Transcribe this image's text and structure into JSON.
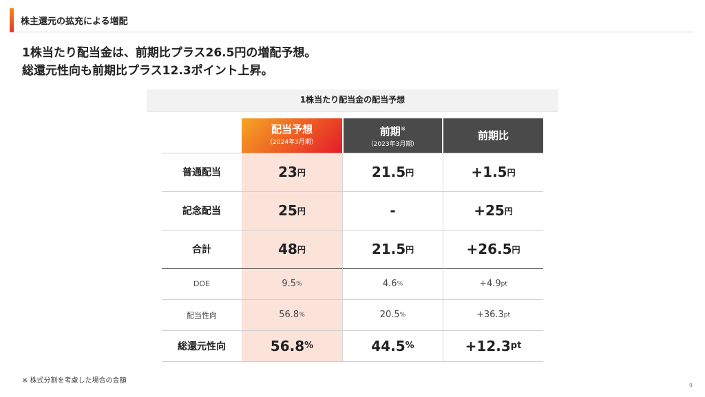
{
  "header": {
    "section_title": "株主還元の拡充による増配"
  },
  "headline": {
    "line1": "1株当たり配当金は、前期比プラス26.5円の増配予想。",
    "line2": "総還元性向も前期比プラス12.3ポイント上昇。"
  },
  "table": {
    "caption": "1株当たり配当金の配当予想",
    "columns": [
      {
        "title": "配当予想",
        "sub": "（2024年3月期）",
        "mark": ""
      },
      {
        "title": "前期",
        "sub": "（2023年3月期）",
        "mark": "※"
      },
      {
        "title": "前期比",
        "sub": "",
        "mark": ""
      }
    ],
    "rows": [
      {
        "label": "普通配当",
        "v1": "23",
        "u1": "円",
        "v2": "21.5",
        "u2": "円",
        "v3": "+1.5",
        "u3": "円"
      },
      {
        "label": "記念配当",
        "v1": "25",
        "u1": "円",
        "v2": "-",
        "u2": "",
        "v3": "+25",
        "u3": "円"
      },
      {
        "label": "合計",
        "v1": "48",
        "u1": "円",
        "v2": "21.5",
        "u2": "円",
        "v3": "+26.5",
        "u3": "円"
      },
      {
        "label": "DOE",
        "v1": "9.5",
        "u1": "%",
        "v2": "4.6",
        "u2": "%",
        "v3": "+4.9",
        "u3": "pt"
      },
      {
        "label": "配当性向",
        "v1": "56.8",
        "u1": "%",
        "v2": "20.5",
        "u2": "%",
        "v3": "+36.3",
        "u3": "pt"
      },
      {
        "label": "総還元性向",
        "v1": "56.8",
        "u1": "%",
        "v2": "44.5",
        "u2": "%",
        "v3": "+12.3",
        "u3": "pt"
      }
    ]
  },
  "footnote": "※ 株式分割を考慮した場合の金額",
  "page_number": "9",
  "colors": {
    "accent_start": "#f5a623",
    "accent_end": "#e31b2b",
    "forecast_bg": "#fbe3da",
    "header_dark": "#4a4a4a"
  }
}
